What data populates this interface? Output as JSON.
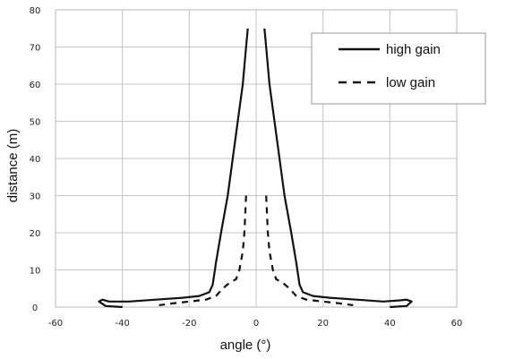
{
  "chart_data": {
    "type": "line",
    "xlabel": "angle (°)",
    "ylabel": "distance (m)",
    "xlim": [
      -60,
      60
    ],
    "ylim": [
      0,
      80
    ],
    "xticks": [
      -60,
      -40,
      -20,
      0,
      20,
      40,
      60
    ],
    "yticks": [
      0,
      10,
      20,
      30,
      40,
      50,
      60,
      70,
      80
    ],
    "x_tick_labels": [
      "-60",
      "-40",
      "-20",
      "0",
      "20",
      "40",
      "60"
    ],
    "y_tick_labels": [
      "0",
      "10",
      "20",
      "30",
      "40",
      "50",
      "60",
      "70",
      "80"
    ],
    "grid": true,
    "legend": {
      "position": "top-right",
      "entries": [
        {
          "label": "high gain",
          "style": "solid"
        },
        {
          "label": "low gain",
          "style": "dashed"
        }
      ]
    },
    "series": [
      {
        "name": "high gain",
        "style": "solid",
        "color": "#111111",
        "points": [
          [
            -2.5,
            75
          ],
          [
            -3,
            70
          ],
          [
            -4,
            60
          ],
          [
            -5.5,
            50
          ],
          [
            -7,
            40
          ],
          [
            -8.5,
            30
          ],
          [
            -10.5,
            20
          ],
          [
            -12,
            12
          ],
          [
            -13,
            6
          ],
          [
            -14,
            4
          ],
          [
            -17,
            3
          ],
          [
            -22,
            2.5
          ],
          [
            -30,
            2
          ],
          [
            -38,
            1.5
          ],
          [
            -44,
            1.5
          ],
          [
            -46,
            2
          ],
          [
            -47,
            1.5
          ],
          [
            -45,
            0.3
          ],
          [
            -40,
            0
          ]
        ]
      },
      {
        "name": "high gain",
        "style": "solid",
        "color": "#111111",
        "points": [
          [
            2.5,
            75
          ],
          [
            3,
            70
          ],
          [
            4,
            60
          ],
          [
            5.5,
            50
          ],
          [
            7,
            40
          ],
          [
            8.5,
            30
          ],
          [
            10.5,
            20
          ],
          [
            12,
            12
          ],
          [
            13,
            6
          ],
          [
            14,
            4
          ],
          [
            17,
            3
          ],
          [
            22,
            2.5
          ],
          [
            30,
            2
          ],
          [
            38,
            1.5
          ],
          [
            43,
            1.8
          ],
          [
            45,
            2
          ],
          [
            46.5,
            1.5
          ],
          [
            45,
            0.3
          ],
          [
            40,
            0
          ]
        ]
      },
      {
        "name": "low gain",
        "style": "dashed",
        "color": "#111111",
        "points": [
          [
            -3,
            30
          ],
          [
            -3.5,
            20
          ],
          [
            -4,
            15
          ],
          [
            -5,
            10
          ],
          [
            -6,
            7.5
          ],
          [
            -8,
            6.5
          ],
          [
            -10,
            5
          ],
          [
            -12,
            3
          ],
          [
            -15,
            2
          ],
          [
            -20,
            1.5
          ],
          [
            -25,
            1
          ],
          [
            -29,
            0.5
          ]
        ]
      },
      {
        "name": "low gain",
        "style": "dashed",
        "color": "#111111",
        "points": [
          [
            3,
            30
          ],
          [
            3.5,
            20
          ],
          [
            4,
            15
          ],
          [
            5,
            10
          ],
          [
            6,
            7.5
          ],
          [
            8,
            6.5
          ],
          [
            10,
            5
          ],
          [
            12,
            3
          ],
          [
            15,
            2
          ],
          [
            20,
            1.5
          ],
          [
            25,
            1
          ],
          [
            29,
            0.5
          ]
        ]
      }
    ]
  }
}
